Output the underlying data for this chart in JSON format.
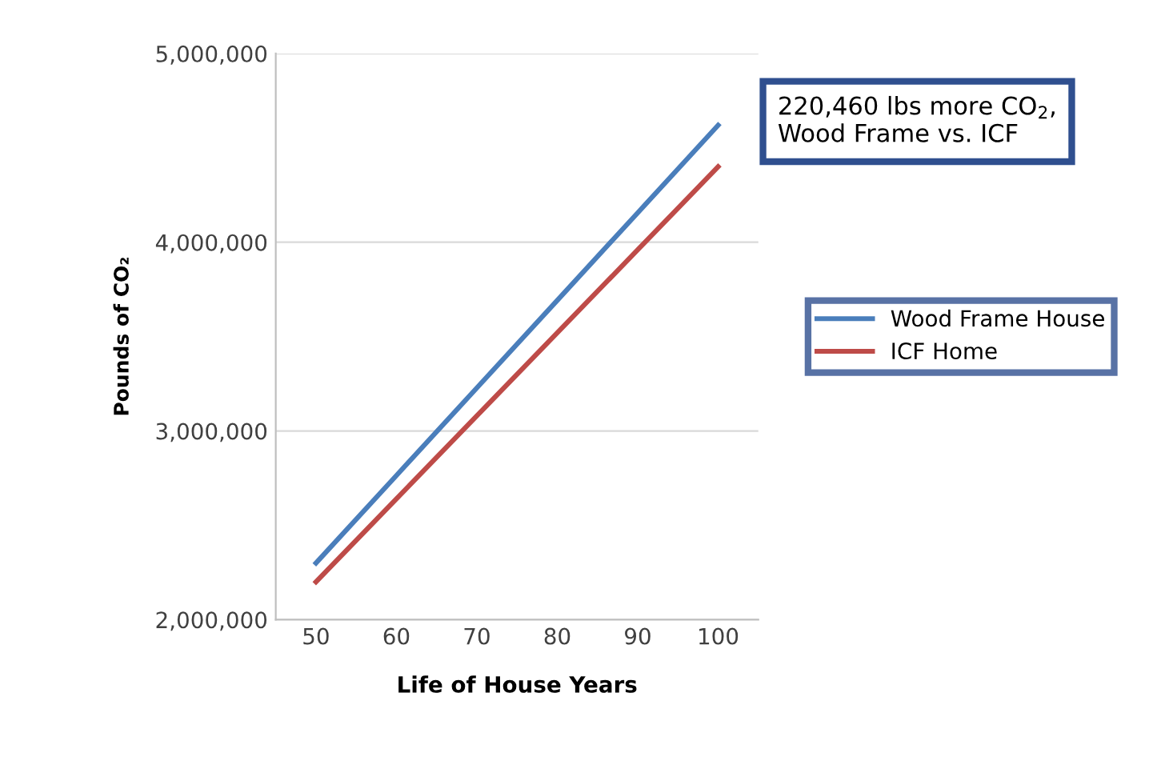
{
  "chart_data": {
    "type": "line",
    "xlabel": "Life of House Years",
    "ylabel": "Pounds of CO₂",
    "annotations": [
      "220,460 lbs more CO$_{2}$,\nWood Frame vs. ICF"
    ],
    "categories": [
      "50",
      "60",
      "70",
      "80",
      "90",
      "100"
    ],
    "series": [
      {
        "name": "Wood Frame House",
        "color": "#4a7ebb",
        "values": [
          2300000,
          2764000,
          3228000,
          3692000,
          4156000,
          4620000
        ]
      },
      {
        "name": "ICF Home",
        "color": "#be4b48",
        "values": [
          2200000,
          2640000,
          3080000,
          3520000,
          3960000,
          4400000
        ]
      }
    ],
    "ylim": [
      2000000,
      5000000
    ],
    "yticks": [
      {
        "value": 2000000,
        "label": "2,000,000"
      },
      {
        "value": 3000000,
        "label": "3,000,000"
      },
      {
        "value": 4000000,
        "label": "4,000,000"
      },
      {
        "value": 5000000,
        "label": "5,000,000"
      }
    ],
    "grid": "y",
    "legend": "right",
    "marker": "none",
    "line_style": "solid"
  }
}
